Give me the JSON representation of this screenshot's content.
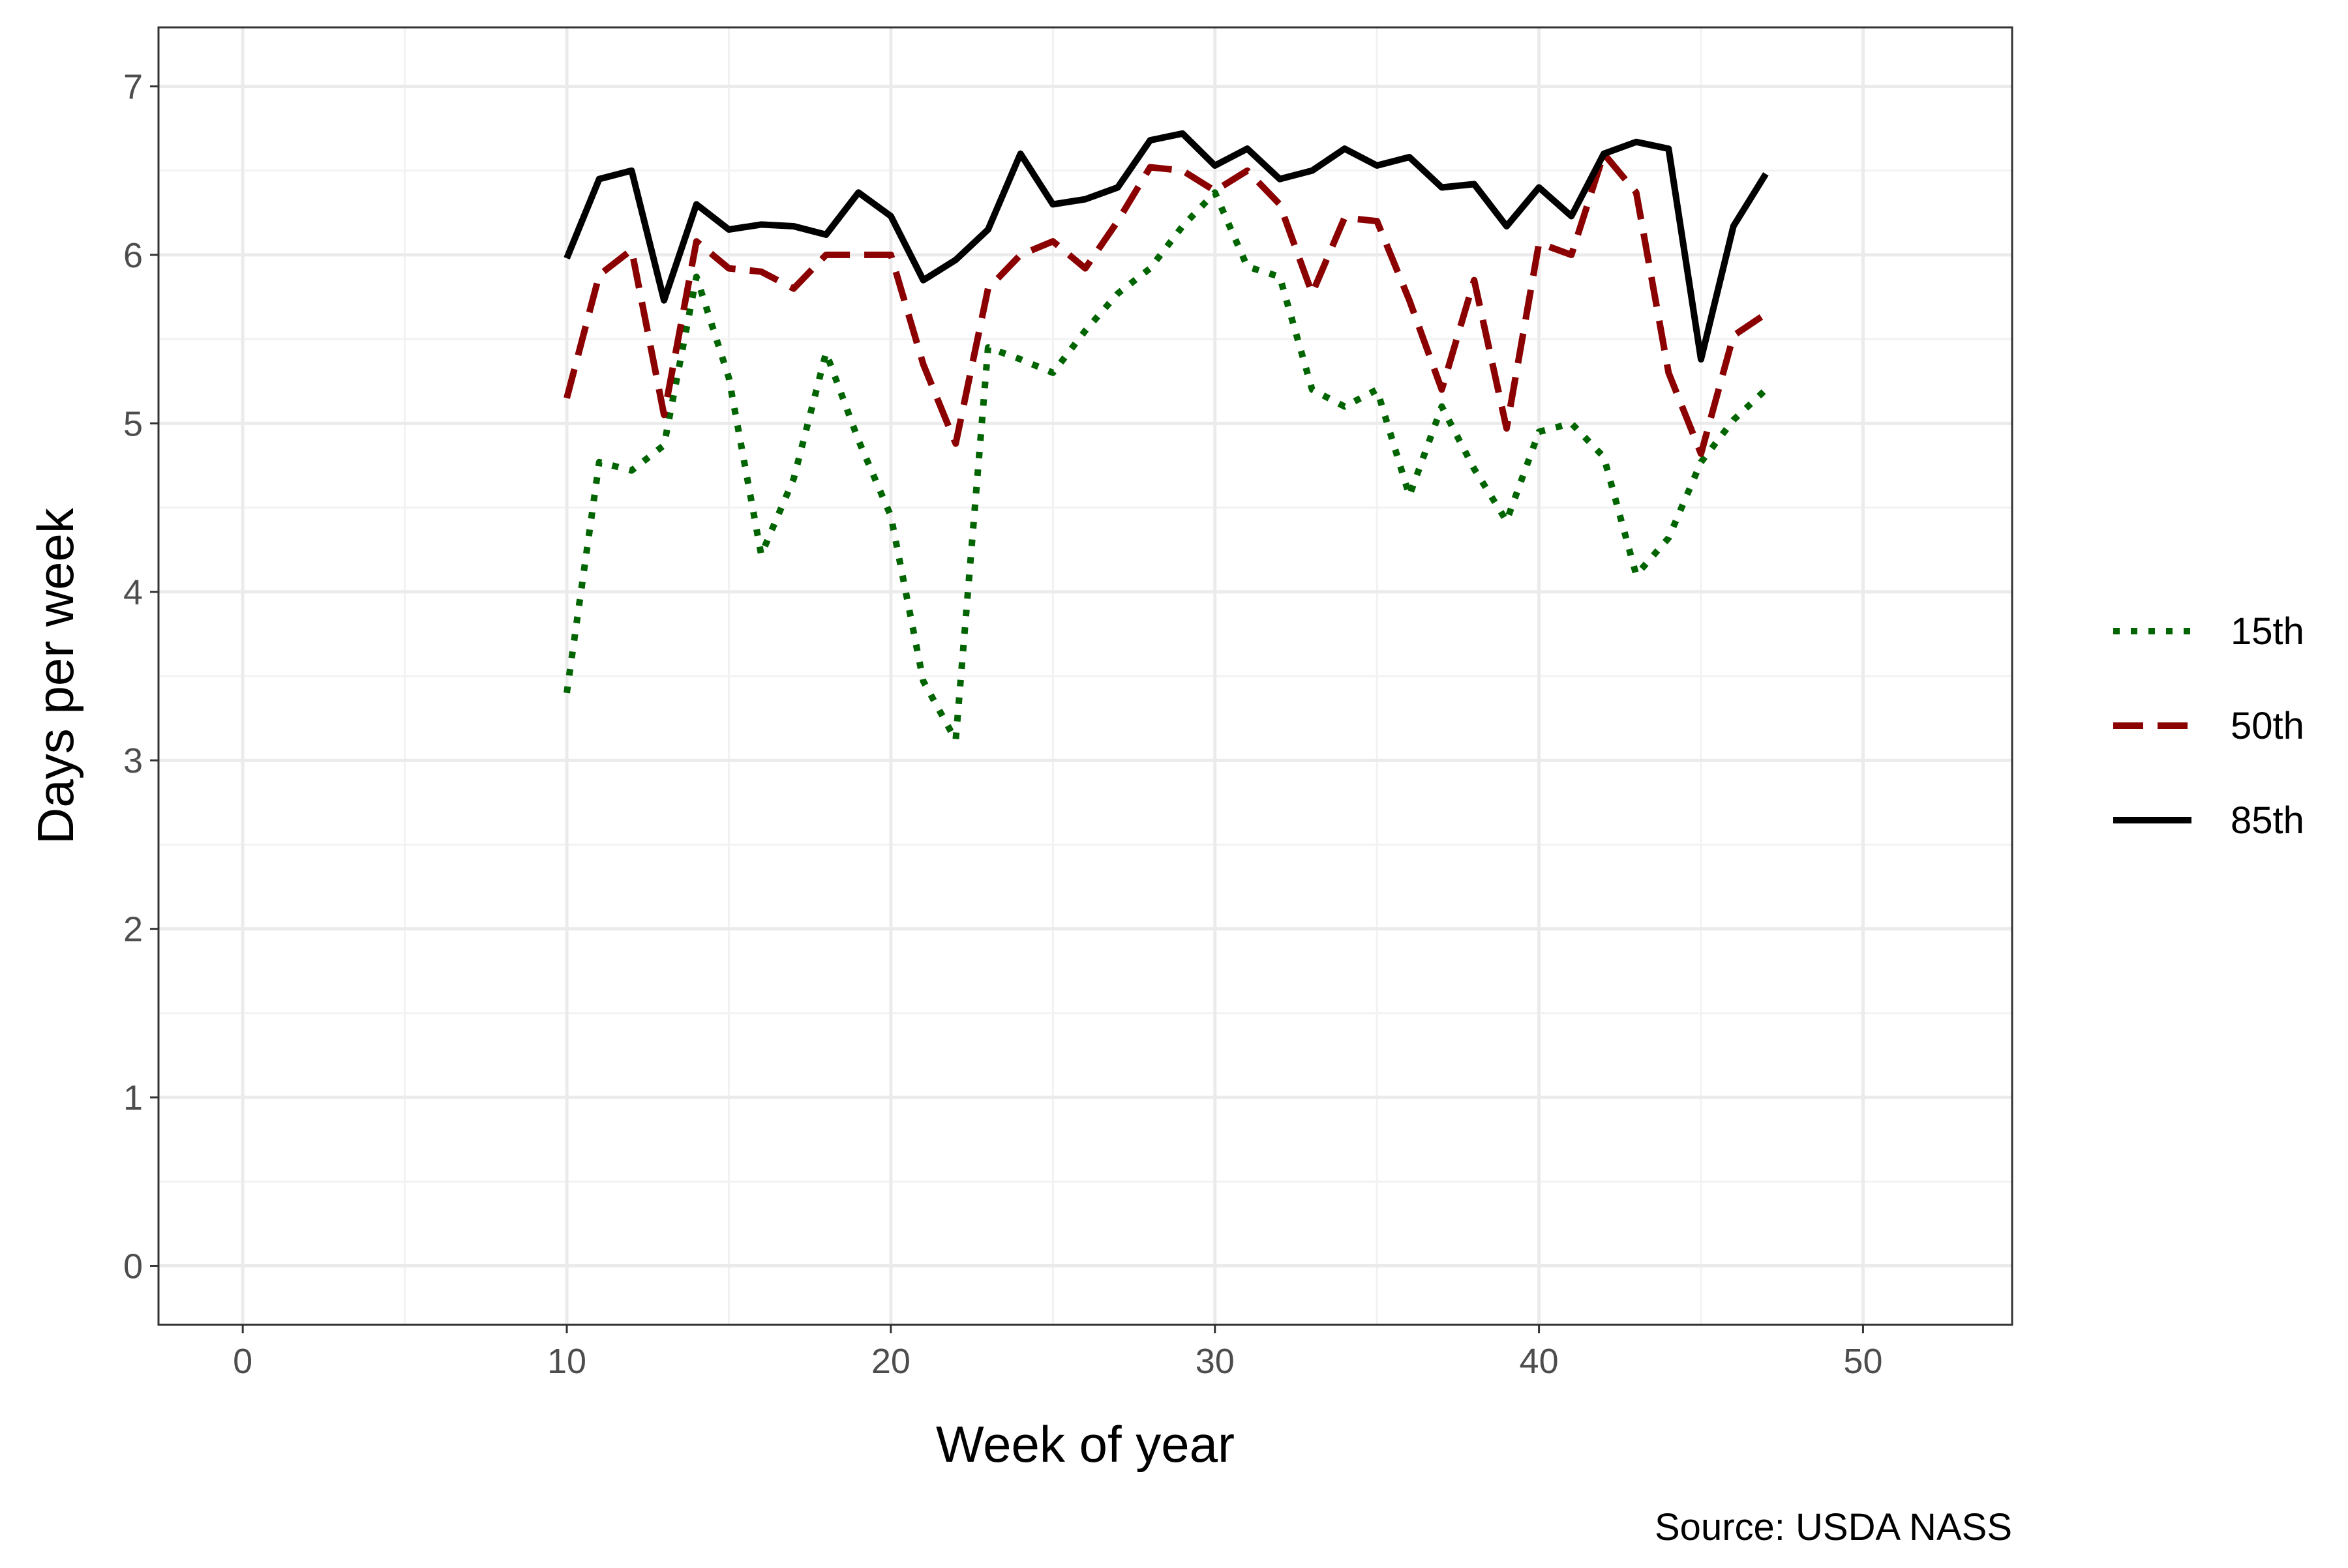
{
  "chart_data": {
    "type": "line",
    "xlabel": "Week of year",
    "ylabel": "Days per week",
    "caption": "Source: USDA NASS",
    "xlim": [
      -2.6,
      54.6
    ],
    "ylim": [
      -0.35,
      7.35
    ],
    "x_ticks": [
      0,
      10,
      20,
      30,
      40,
      50
    ],
    "y_ticks": [
      0,
      1,
      2,
      3,
      4,
      5,
      6,
      7
    ],
    "x_tick_labels": [
      "0",
      "10",
      "20",
      "30",
      "40",
      "50"
    ],
    "y_tick_labels": [
      "0",
      "1",
      "2",
      "3",
      "4",
      "5",
      "6",
      "7"
    ],
    "grid": true,
    "legend_position": "right",
    "x": [
      10,
      11,
      12,
      13,
      14,
      15,
      16,
      17,
      18,
      19,
      20,
      21,
      22,
      23,
      24,
      25,
      26,
      27,
      28,
      29,
      30,
      31,
      32,
      33,
      34,
      35,
      36,
      37,
      38,
      39,
      40,
      41,
      42,
      43,
      44,
      45,
      46,
      47
    ],
    "series": [
      {
        "name": "15th",
        "color": "#006400",
        "dash": "dotted",
        "values": [
          3.4,
          4.77,
          4.72,
          4.87,
          5.87,
          5.27,
          4.22,
          4.67,
          5.42,
          4.9,
          4.45,
          3.47,
          3.12,
          5.45,
          5.38,
          5.3,
          5.55,
          5.77,
          5.92,
          6.17,
          6.37,
          5.93,
          5.87,
          5.2,
          5.1,
          5.2,
          4.57,
          5.1,
          4.73,
          4.42,
          4.95,
          5.0,
          4.8,
          4.1,
          4.32,
          4.77,
          5.02,
          5.2
        ]
      },
      {
        "name": "50th",
        "color": "#8b0000",
        "dash": "dashed",
        "values": [
          5.15,
          5.88,
          6.03,
          5.05,
          6.08,
          5.92,
          5.9,
          5.8,
          6.0,
          6.0,
          6.0,
          5.35,
          4.88,
          5.8,
          6.0,
          6.08,
          5.92,
          6.2,
          6.52,
          6.5,
          6.38,
          6.5,
          6.3,
          5.77,
          6.22,
          6.2,
          5.73,
          5.2,
          5.85,
          4.97,
          6.07,
          6.0,
          6.6,
          6.37,
          5.3,
          4.82,
          5.52,
          5.65
        ]
      },
      {
        "name": "85th",
        "color": "#000000",
        "dash": "solid",
        "values": [
          5.98,
          6.45,
          6.5,
          5.73,
          6.3,
          6.15,
          6.18,
          6.17,
          6.12,
          6.37,
          6.23,
          5.85,
          5.97,
          6.15,
          6.6,
          6.3,
          6.33,
          6.4,
          6.68,
          6.72,
          6.53,
          6.63,
          6.45,
          6.5,
          6.63,
          6.53,
          6.58,
          6.4,
          6.42,
          6.17,
          6.4,
          6.23,
          6.6,
          6.67,
          6.63,
          5.38,
          6.17,
          6.48
        ]
      }
    ]
  }
}
